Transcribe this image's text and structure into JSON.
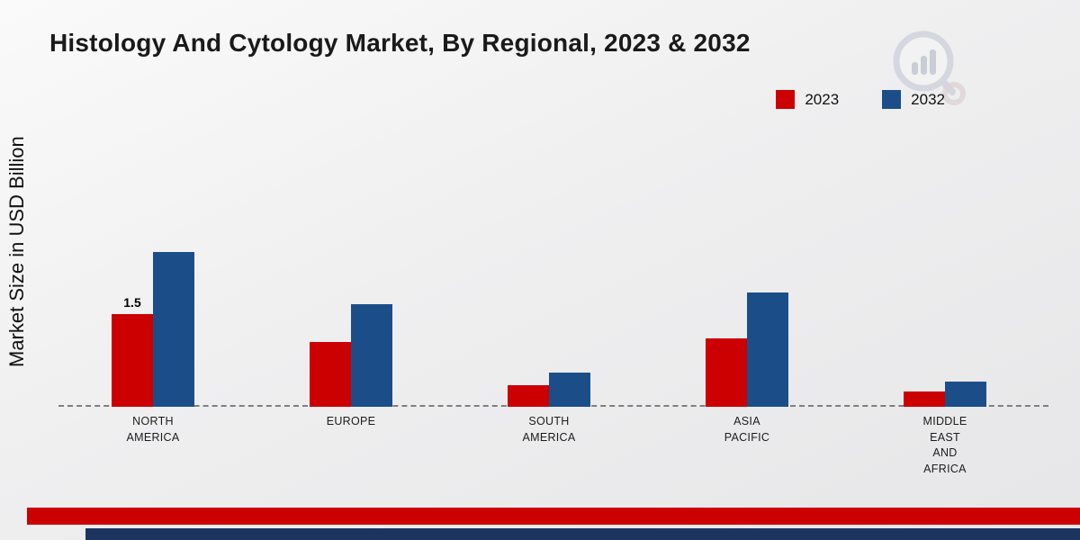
{
  "chart_data": {
    "type": "bar",
    "title": "Histology And Cytology Market, By Regional, 2023 & 2032",
    "ylabel": "Market Size in USD Billion",
    "xlabel": "",
    "unit": "USD Billion",
    "categories": [
      "NORTH AMERICA",
      "EUROPE",
      "SOUTH AMERICA",
      "ASIA PACIFIC",
      "MIDDLE EAST AND AFRICA"
    ],
    "category_lines": [
      [
        "NORTH",
        "AMERICA"
      ],
      [
        "EUROPE"
      ],
      [
        "SOUTH",
        "AMERICA"
      ],
      [
        "ASIA",
        "PACIFIC"
      ],
      [
        "MIDDLE",
        "EAST",
        "AND",
        "AFRICA"
      ]
    ],
    "series": [
      {
        "name": "2023",
        "color": "#cc0001",
        "values": [
          1.5,
          1.05,
          0.35,
          1.1,
          0.25
        ]
      },
      {
        "name": "2032",
        "color": "#1b4e89",
        "values": [
          2.5,
          1.65,
          0.55,
          1.85,
          0.4
        ]
      }
    ],
    "data_labels": [
      {
        "series": "2023",
        "category": "NORTH AMERICA",
        "text": "1.5"
      }
    ],
    "ylim": [
      0,
      4.5
    ],
    "grid": false,
    "legend_position": "top-right",
    "baseline_style": "dashed"
  },
  "footer": {
    "red_strip_color": "#cc0001",
    "navy_strip_color": "#1d3461"
  },
  "logo": {
    "name": "market-research-future-logo"
  }
}
